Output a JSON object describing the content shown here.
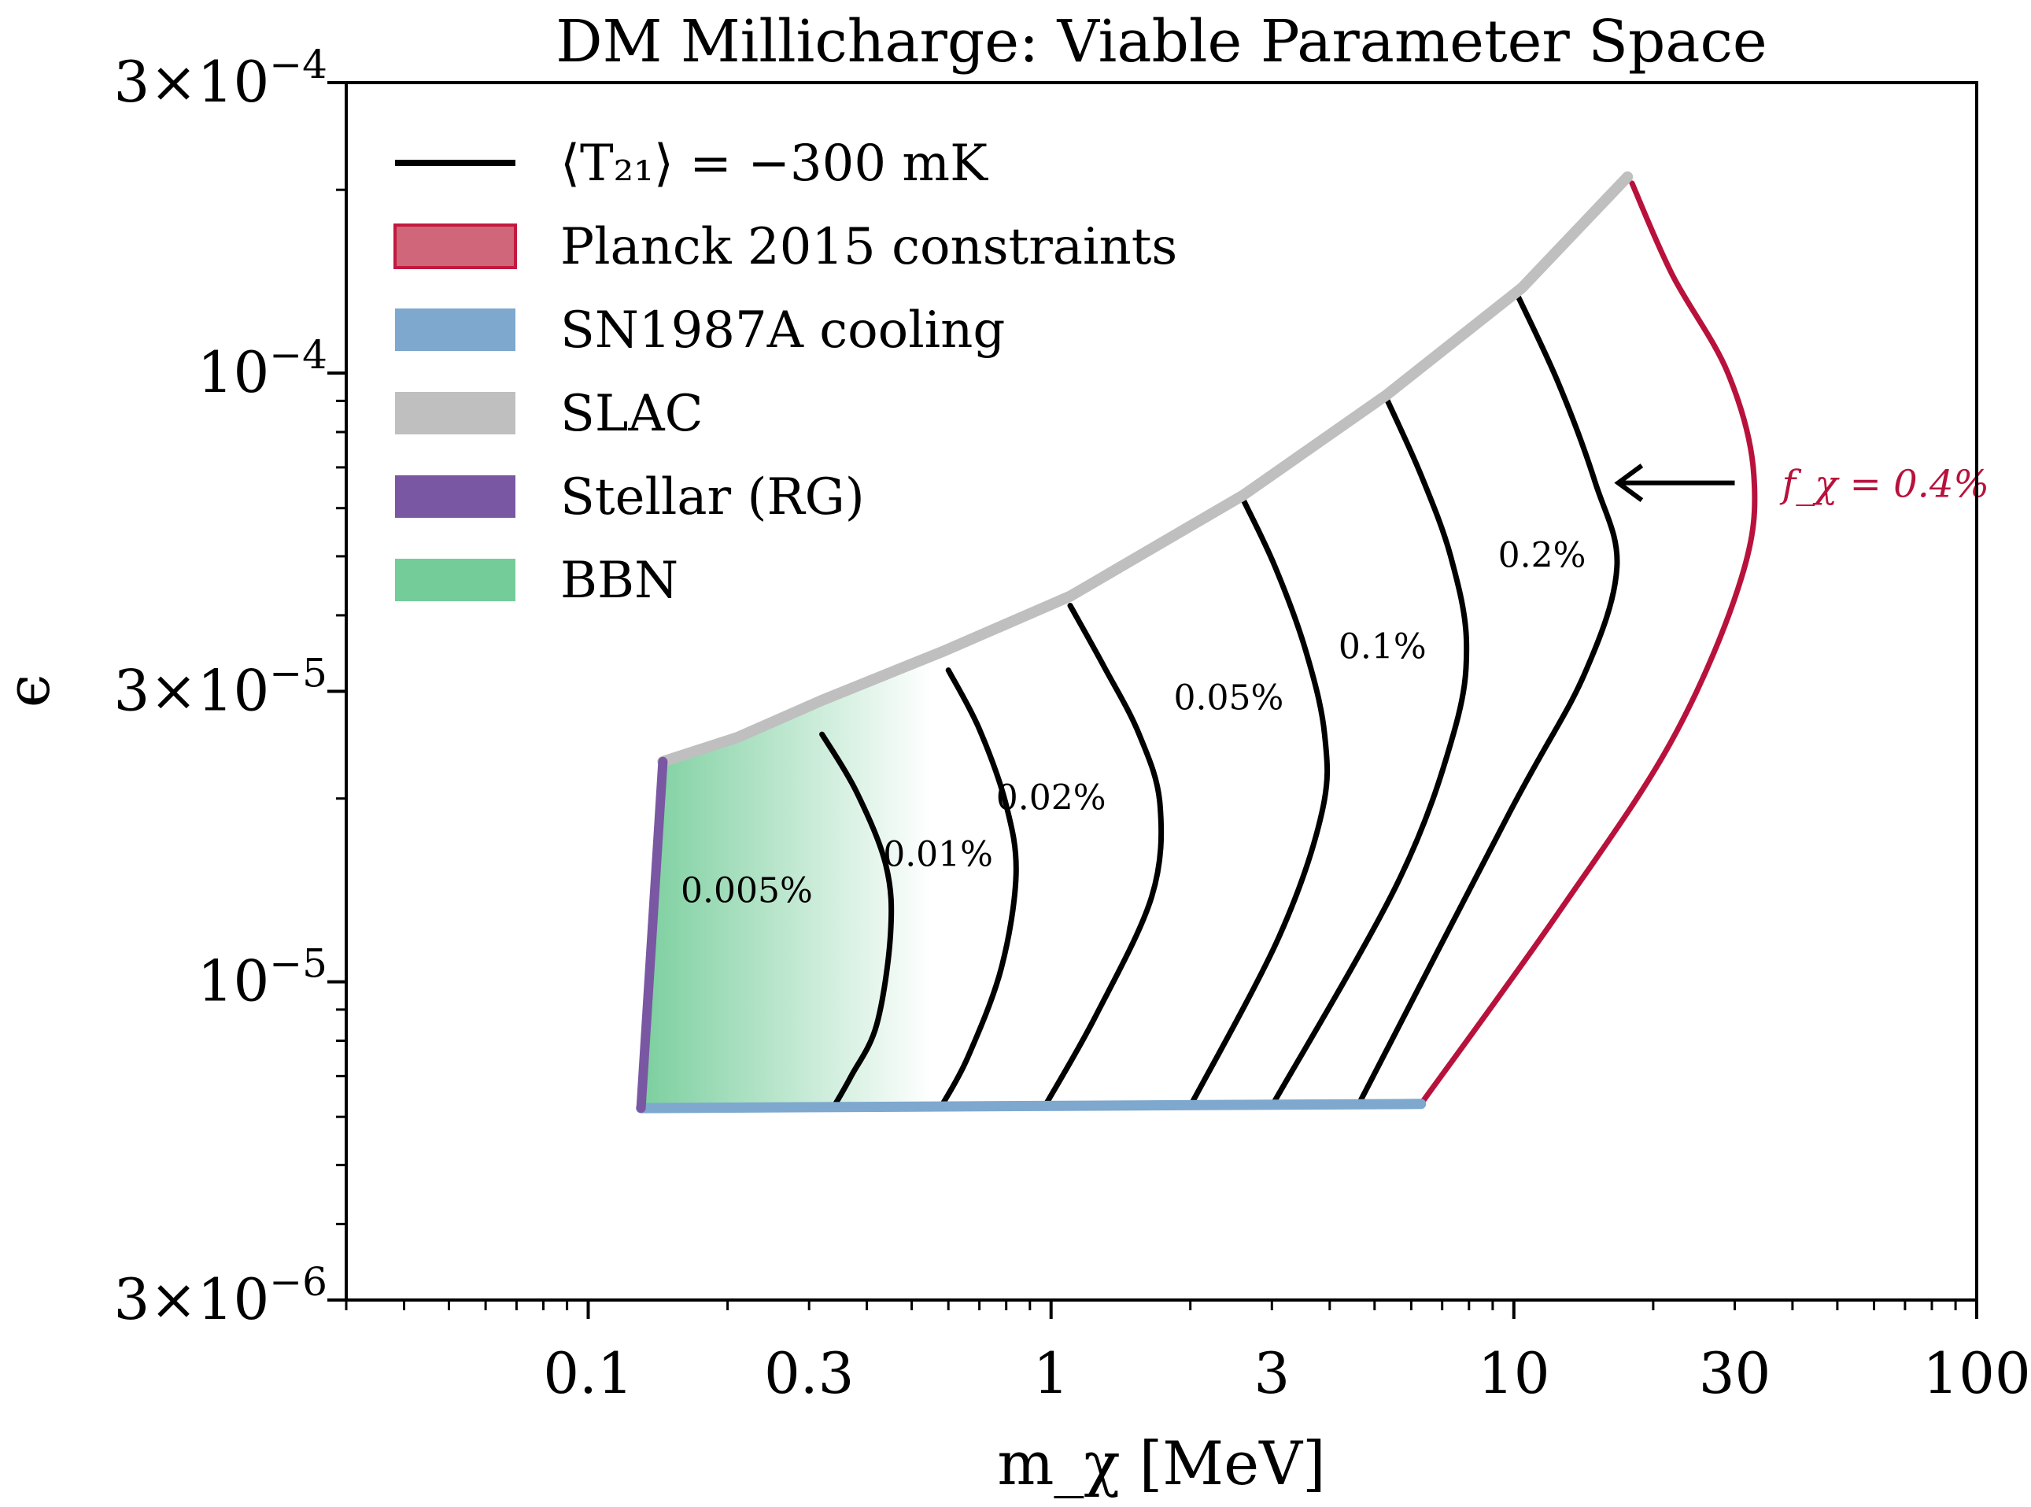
{
  "chart_data": {
    "type": "line",
    "title": "DM Millicharge: Viable Parameter Space",
    "xlabel": "m_χ [MeV]",
    "ylabel": "ϵ",
    "xscale": "log",
    "yscale": "log",
    "xlim": [
      0.03,
      100
    ],
    "ylim": [
      3e-06,
      0.0003
    ],
    "xticks": [
      {
        "value": 0.1,
        "label": "0.1"
      },
      {
        "value": 0.3,
        "label": "0.3"
      },
      {
        "value": 1,
        "label": "1"
      },
      {
        "value": 3,
        "label": "3"
      },
      {
        "value": 10,
        "label": "10"
      },
      {
        "value": 30,
        "label": "30"
      },
      {
        "value": 100,
        "label": "100"
      }
    ],
    "yticks": [
      {
        "value": 3e-06,
        "mantissa": "3",
        "exponent": "−6"
      },
      {
        "value": 1e-05,
        "mantissa": "",
        "exponent": "−5"
      },
      {
        "value": 3e-05,
        "mantissa": "3",
        "exponent": "−5"
      },
      {
        "value": 0.0001,
        "mantissa": "",
        "exponent": "−4"
      },
      {
        "value": 0.0003,
        "mantissa": "3",
        "exponent": "−4"
      }
    ],
    "grid": false,
    "legend_position": "top-left",
    "legend": [
      {
        "label": "⟨T₂₁⟩ = −300 mK",
        "kind": "line",
        "color": "#000000"
      },
      {
        "label": "Planck 2015 constraints",
        "kind": "patch",
        "color": "#cf6679",
        "edge": "#c2193f"
      },
      {
        "label": "SN1987A cooling",
        "kind": "patch",
        "color": "#7ea8cd"
      },
      {
        "label": "SLAC",
        "kind": "patch",
        "color": "#bfbfbf"
      },
      {
        "label": "Stellar (RG)",
        "kind": "patch",
        "color": "#7a57a3"
      },
      {
        "label": "BBN",
        "kind": "patch",
        "color": "#74cc99"
      }
    ],
    "bounds": {
      "slac": {
        "color": "#bfbfbf",
        "x": [
          0.145,
          0.21,
          0.32,
          0.59,
          1.1,
          2.6,
          5.3,
          10.4,
          17.6
        ],
        "y": [
          2.3e-05,
          2.52e-05,
          2.9e-05,
          3.5e-05,
          4.3e-05,
          6.3e-05,
          9.2e-05,
          0.000138,
          0.00021
        ]
      },
      "sn1987a": {
        "color": "#7ea8cd",
        "x": [
          0.13,
          6.3
        ],
        "y": [
          6.2e-06,
          6.3e-06
        ]
      },
      "stellar_rg": {
        "color": "#7a57a3",
        "x": [
          0.13,
          0.145
        ],
        "y": [
          6.2e-06,
          2.3e-05
        ]
      },
      "bbn": {
        "color": "#74cc99",
        "x_start": 0.13,
        "x_fade_end": 0.55
      }
    },
    "series": [
      {
        "fraction": "0.005%",
        "label_at": {
          "x": 0.22,
          "y": 1.35e-05
        },
        "x": [
          0.32,
          0.38,
          0.44,
          0.45,
          0.42,
          0.37,
          0.34
        ],
        "y": [
          2.55e-05,
          2.05e-05,
          1.55e-05,
          1.2e-05,
          8.5e-06,
          7e-06,
          6.25e-06
        ]
      },
      {
        "fraction": "0.01%",
        "label_at": {
          "x": 0.57,
          "y": 1.55e-05
        },
        "x": [
          0.6,
          0.7,
          0.8,
          0.84,
          0.78,
          0.66,
          0.58
        ],
        "y": [
          3.25e-05,
          2.6e-05,
          1.95e-05,
          1.5e-05,
          1.05e-05,
          7.5e-06,
          6.25e-06
        ]
      },
      {
        "fraction": "0.02%",
        "label_at": {
          "x": 1.0,
          "y": 1.92e-05
        },
        "x": [
          1.1,
          1.3,
          1.55,
          1.72,
          1.65,
          1.25,
          0.97
        ],
        "y": [
          4.15e-05,
          3.3e-05,
          2.55e-05,
          1.95e-05,
          1.38e-05,
          8.8e-06,
          6.25e-06
        ]
      },
      {
        "fraction": "0.05%",
        "label_at": {
          "x": 2.42,
          "y": 2.8e-05
        },
        "x": [
          2.6,
          3.05,
          3.55,
          3.9,
          3.85,
          3.1,
          2.0
        ],
        "y": [
          6.2e-05,
          4.8e-05,
          3.5e-05,
          2.55e-05,
          1.9e-05,
          1.18e-05,
          6.25e-06
        ]
      },
      {
        "fraction": "0.1%",
        "label_at": {
          "x": 5.2,
          "y": 3.4e-05
        },
        "x": [
          5.3,
          6.3,
          7.3,
          7.9,
          7.4,
          5.6,
          3.0
        ],
        "y": [
          9.1e-05,
          6.8e-05,
          5e-05,
          3.6e-05,
          2.55e-05,
          1.45e-05,
          6.25e-06
        ]
      },
      {
        "fraction": "0.2%",
        "label_at": {
          "x": 11.5,
          "y": 4.8e-05
        },
        "x": [
          10.1,
          12.5,
          15.0,
          16.7,
          14.2,
          9.8,
          4.6
        ],
        "y": [
          0.000136,
          9.6e-05,
          6.6e-05,
          4.8e-05,
          3.2e-05,
          1.9e-05,
          6.25e-06
        ]
      },
      {
        "fraction": "0.4%",
        "label_at": {
          "x": 40,
          "y": 6.6e-05
        },
        "x": [
          18.0,
          22.0,
          29.0,
          33.0,
          31.0,
          22.0,
          12.5,
          6.3
        ],
        "y": [
          0.000205,
          0.000145,
          0.0001,
          6.8e-05,
          4.6e-05,
          2.5e-05,
          1.3e-05,
          6.3e-06
        ]
      }
    ],
    "annotation": {
      "text": "f_χ = 0.4%",
      "color": "#b8123c",
      "arrow_from": {
        "x": 30,
        "y": 6.6e-05
      },
      "arrow_to": {
        "x": 16.8,
        "y": 6.6e-05
      }
    }
  }
}
